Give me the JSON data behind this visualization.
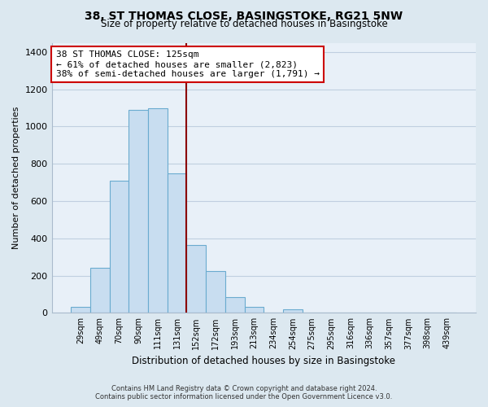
{
  "title": "38, ST THOMAS CLOSE, BASINGSTOKE, RG21 5NW",
  "subtitle": "Size of property relative to detached houses in Basingstoke",
  "xlabel": "Distribution of detached houses by size in Basingstoke",
  "ylabel": "Number of detached properties",
  "bar_labels": [
    "29sqm",
    "49sqm",
    "70sqm",
    "90sqm",
    "111sqm",
    "131sqm",
    "152sqm",
    "172sqm",
    "193sqm",
    "213sqm",
    "234sqm",
    "254sqm",
    "275sqm",
    "295sqm",
    "316sqm",
    "336sqm",
    "357sqm",
    "377sqm",
    "398sqm",
    "439sqm"
  ],
  "bar_values": [
    30,
    240,
    710,
    1090,
    1100,
    750,
    365,
    225,
    85,
    30,
    0,
    20,
    0,
    0,
    0,
    0,
    0,
    0,
    0,
    0
  ],
  "bar_color": "#c8ddf0",
  "bar_edge_color": "#6aabcf",
  "vline_x": 5.5,
  "vline_color": "#8b0000",
  "ylim": [
    0,
    1450
  ],
  "yticks": [
    0,
    200,
    400,
    600,
    800,
    1000,
    1200,
    1400
  ],
  "annotation_title": "38 ST THOMAS CLOSE: 125sqm",
  "annotation_line1": "← 61% of detached houses are smaller (2,823)",
  "annotation_line2": "38% of semi-detached houses are larger (1,791) →",
  "annotation_box_facecolor": "#ffffff",
  "annotation_box_edgecolor": "#cc0000",
  "footnote1": "Contains HM Land Registry data © Crown copyright and database right 2024.",
  "footnote2": "Contains public sector information licensed under the Open Government Licence v3.0.",
  "bg_color": "#dce8f0",
  "plot_bg_color": "#e8f0f8",
  "grid_color": "#c0cfe0"
}
